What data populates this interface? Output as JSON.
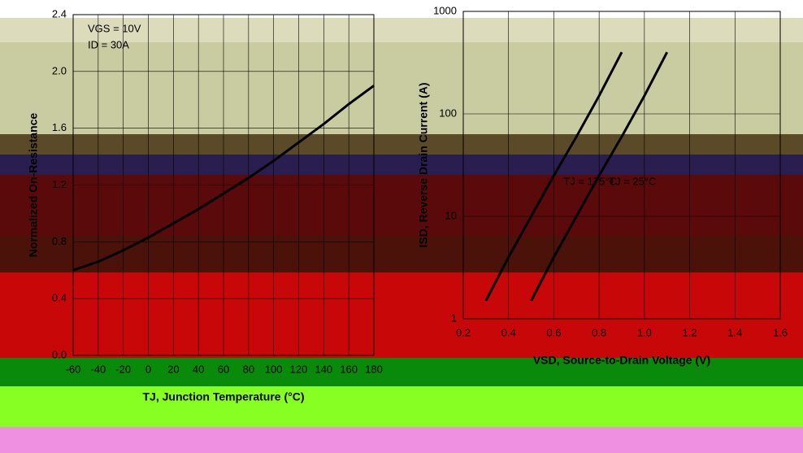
{
  "chart_data": [
    {
      "type": "line",
      "log_y": false,
      "color": "#000000",
      "y_label": "Normalized On-Resistance",
      "x_label": "TJ, Junction Temperature (°C)",
      "annotations": [
        "VGS = 10V",
        "ID = 30A"
      ],
      "x": [
        -60,
        -40,
        -20,
        0,
        20,
        40,
        60,
        80,
        100,
        120,
        140,
        160,
        180
      ],
      "series": [
        {
          "values": [
            0.6,
            0.66,
            0.74,
            0.83,
            0.93,
            1.03,
            1.14,
            1.25,
            1.37,
            1.5,
            1.63,
            1.77,
            1.9
          ]
        }
      ],
      "xlim": [
        -60,
        180
      ],
      "xticks": [
        -60,
        -40,
        -20,
        0,
        20,
        40,
        60,
        80,
        100,
        120,
        140,
        160,
        180
      ],
      "ylim": [
        0,
        2.4
      ],
      "yticks": [
        {
          "value": 0,
          "label": "0.0"
        },
        0.4,
        0.8,
        1.2,
        1.6,
        {
          "value": 2,
          "label": "2.0"
        },
        2.4
      ],
      "grid": true
    },
    {
      "type": "line",
      "log_y": true,
      "color": "#000000",
      "y_label": "ISD, Reverse Drain Current (A)",
      "x_label": "VSD, Source-to-Drain Voltage (V)",
      "series": [
        {
          "name": "TJ = 175°C",
          "x": [
            0.3,
            0.4,
            0.5,
            0.6,
            0.7,
            0.8,
            0.9
          ],
          "values": [
            1.5,
            4,
            10,
            25,
            60,
            150,
            400
          ]
        },
        {
          "name": "TJ = 25°C",
          "x": [
            0.5,
            0.6,
            0.7,
            0.8,
            0.9,
            1.0,
            1.1
          ],
          "values": [
            1.5,
            4,
            10,
            25,
            60,
            150,
            400
          ]
        }
      ],
      "xlim": [
        0.2,
        1.6
      ],
      "xticks": [
        0.2,
        0.4,
        0.6,
        0.8,
        {
          "value": 1,
          "label": "1.0"
        },
        1.2,
        1.4,
        1.6
      ],
      "ylim": [
        1,
        1000
      ],
      "yticks": [
        1,
        10,
        100,
        1000
      ],
      "grid": true
    }
  ]
}
